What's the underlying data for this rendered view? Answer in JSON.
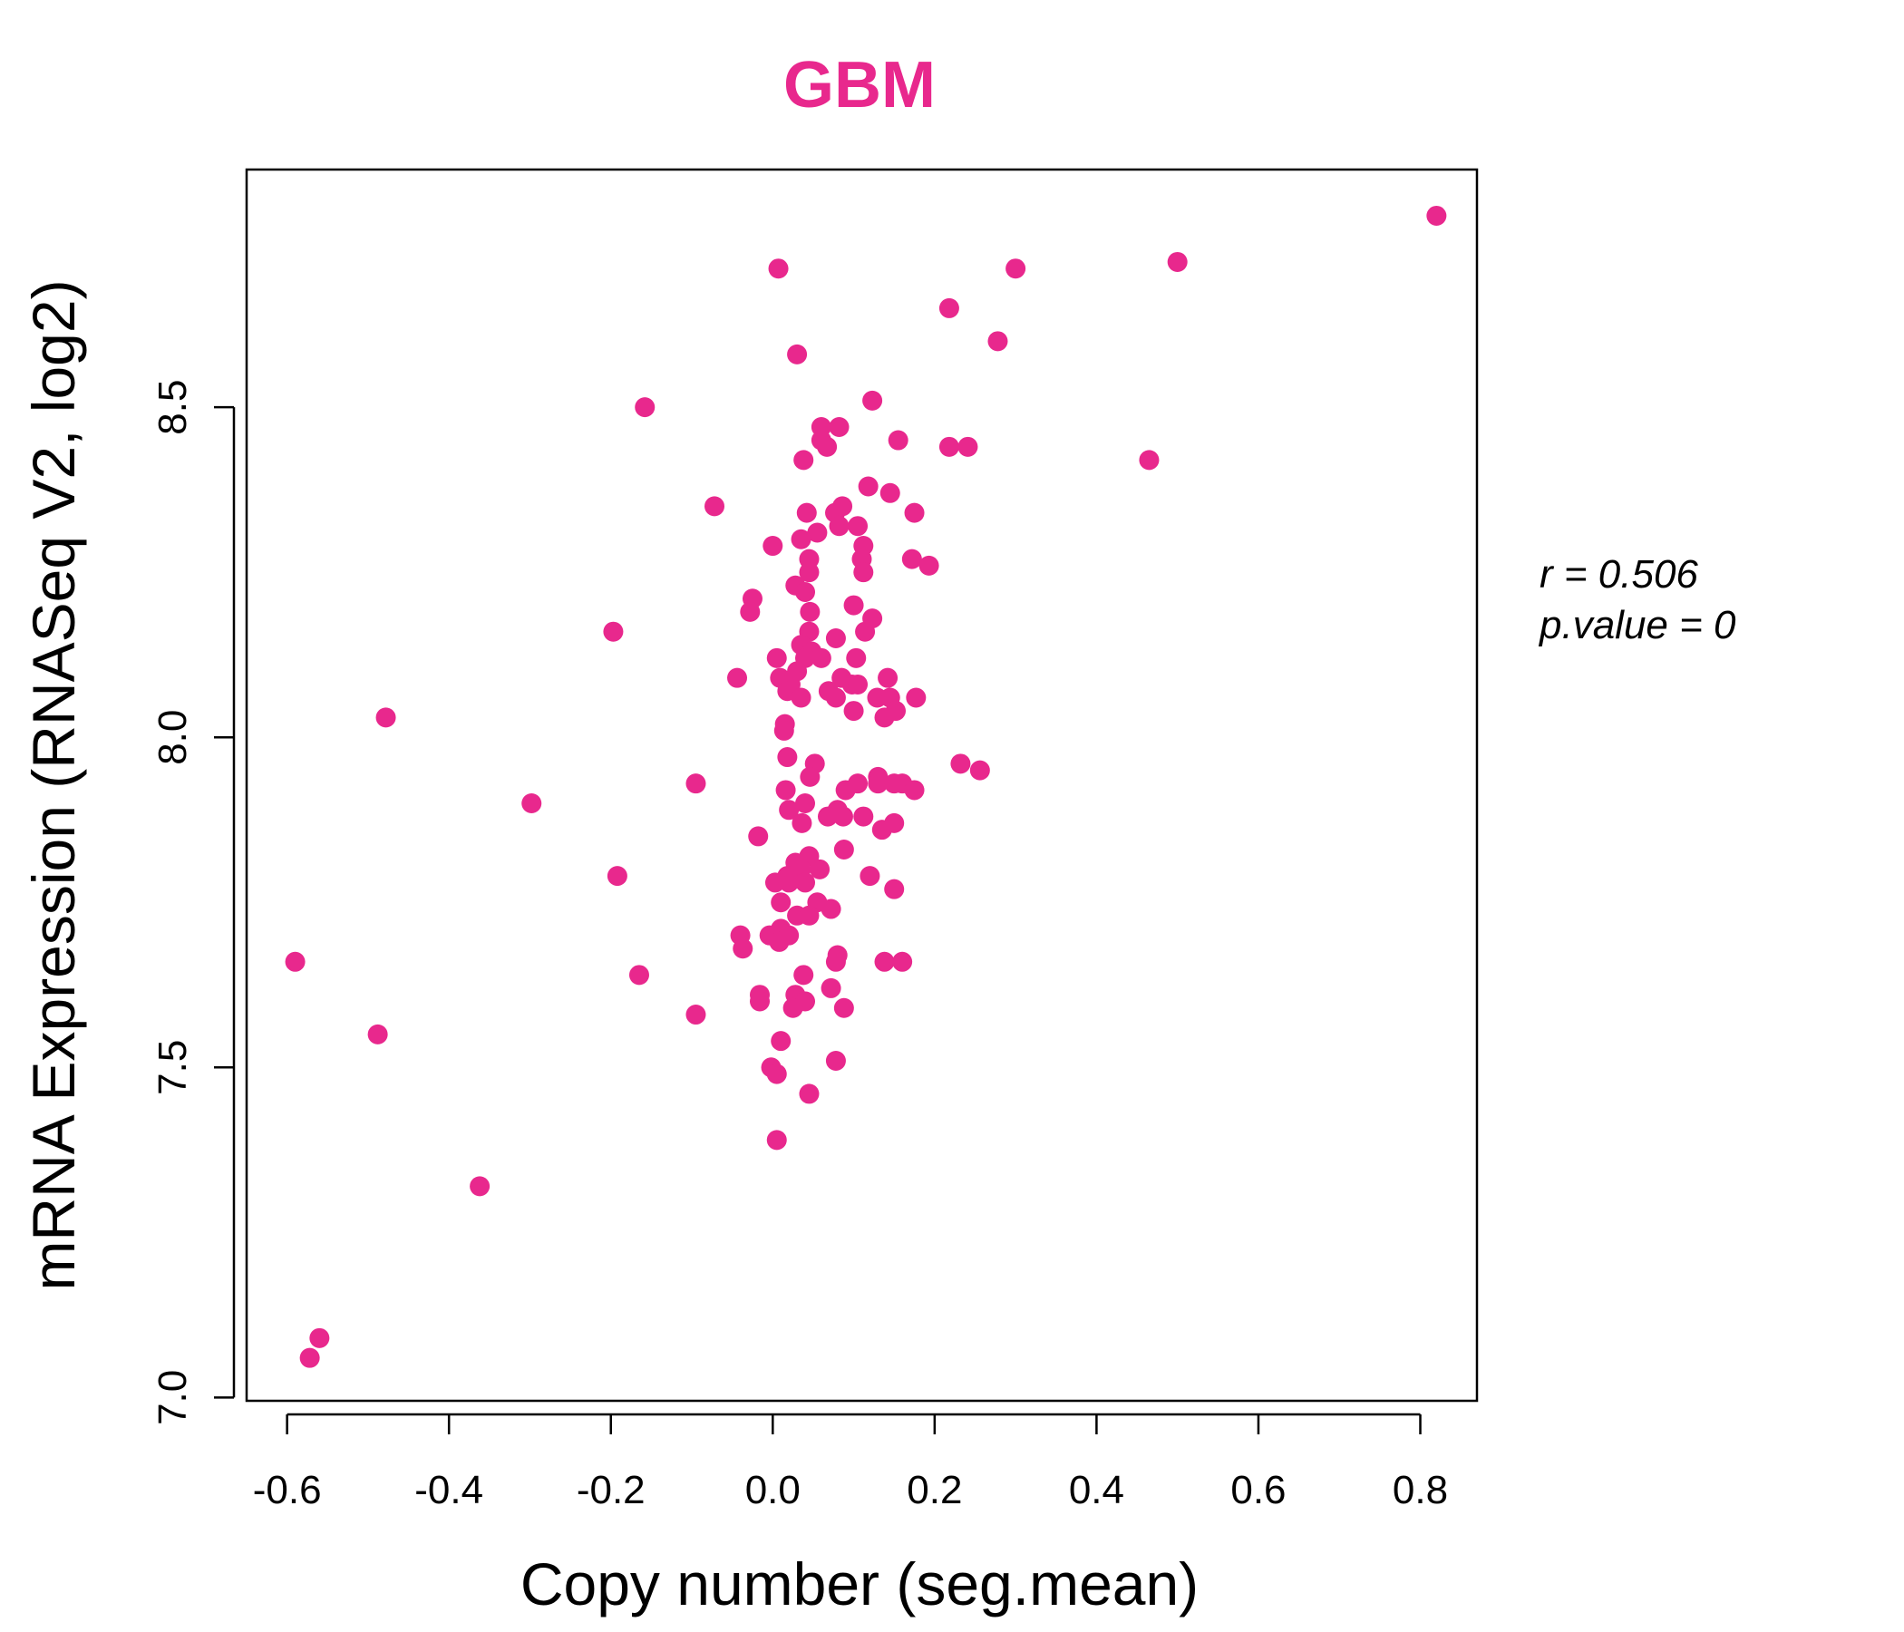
{
  "colors": {
    "point": "#E8288D",
    "title": "#E8288D",
    "axis": "#000000",
    "background": "#ffffff"
  },
  "chart_data": {
    "type": "scatter",
    "title": "GBM",
    "xlabel": "Copy number (seg.mean)",
    "ylabel": "mRNA Expression (RNASeq V2, log2)",
    "xlim": [
      -0.65,
      0.87
    ],
    "ylim": [
      6.995,
      8.86
    ],
    "xticks": [
      -0.6,
      -0.4,
      -0.2,
      0.0,
      0.2,
      0.4,
      0.6,
      0.8
    ],
    "xtick_labels": [
      "-0.6",
      "-0.4",
      "-0.2",
      "0.0",
      "0.2",
      "0.4",
      "0.6",
      "0.8"
    ],
    "yticks": [
      7.0,
      7.5,
      8.0,
      8.5
    ],
    "ytick_labels": [
      "7.0",
      "7.5",
      "8.0",
      "8.5"
    ],
    "grid": false,
    "stats": {
      "r_text": "r = 0.506",
      "p_text": "p.value = 0"
    },
    "points": [
      [
        0.82,
        8.79
      ],
      [
        0.5,
        8.72
      ],
      [
        0.3,
        8.71
      ],
      [
        0.007,
        8.71
      ],
      [
        0.218,
        8.65
      ],
      [
        0.278,
        8.6
      ],
      [
        0.03,
        8.58
      ],
      [
        0.123,
        8.51
      ],
      [
        -0.158,
        8.5
      ],
      [
        0.06,
        8.47
      ],
      [
        0.082,
        8.47
      ],
      [
        0.06,
        8.45
      ],
      [
        0.067,
        8.44
      ],
      [
        0.155,
        8.45
      ],
      [
        0.218,
        8.44
      ],
      [
        0.241,
        8.44
      ],
      [
        0.038,
        8.42
      ],
      [
        0.465,
        8.42
      ],
      [
        0.118,
        8.38
      ],
      [
        0.145,
        8.37
      ],
      [
        -0.072,
        8.35
      ],
      [
        0.042,
        8.34
      ],
      [
        0.077,
        8.34
      ],
      [
        0.086,
        8.35
      ],
      [
        0.175,
        8.34
      ],
      [
        0.055,
        8.31
      ],
      [
        0.082,
        8.32
      ],
      [
        0.105,
        8.32
      ],
      [
        0.035,
        8.3
      ],
      [
        0.0,
        8.29
      ],
      [
        0.112,
        8.29
      ],
      [
        0.045,
        8.27
      ],
      [
        0.11,
        8.27
      ],
      [
        0.172,
        8.27
      ],
      [
        0.193,
        8.26
      ],
      [
        0.045,
        8.25
      ],
      [
        0.112,
        8.25
      ],
      [
        0.028,
        8.23
      ],
      [
        0.04,
        8.22
      ],
      [
        -0.025,
        8.21
      ],
      [
        -0.028,
        8.19
      ],
      [
        0.1,
        8.2
      ],
      [
        0.046,
        8.19
      ],
      [
        0.123,
        8.18
      ],
      [
        -0.197,
        8.16
      ],
      [
        0.045,
        8.16
      ],
      [
        0.114,
        8.16
      ],
      [
        0.078,
        8.15
      ],
      [
        0.035,
        8.14
      ],
      [
        0.048,
        8.13
      ],
      [
        0.005,
        8.12
      ],
      [
        0.04,
        8.12
      ],
      [
        0.06,
        8.12
      ],
      [
        0.103,
        8.12
      ],
      [
        0.03,
        8.1
      ],
      [
        -0.044,
        8.09
      ],
      [
        0.009,
        8.09
      ],
      [
        0.085,
        8.09
      ],
      [
        0.142,
        8.09
      ],
      [
        0.022,
        8.08
      ],
      [
        0.098,
        8.08
      ],
      [
        0.105,
        8.08
      ],
      [
        0.018,
        8.07
      ],
      [
        0.069,
        8.07
      ],
      [
        0.035,
        8.06
      ],
      [
        0.078,
        8.06
      ],
      [
        0.129,
        8.06
      ],
      [
        0.145,
        8.06
      ],
      [
        0.177,
        8.06
      ],
      [
        0.1,
        8.04
      ],
      [
        0.152,
        8.04
      ],
      [
        -0.478,
        8.03
      ],
      [
        0.138,
        8.03
      ],
      [
        0.015,
        8.02
      ],
      [
        0.014,
        8.01
      ],
      [
        0.232,
        7.96
      ],
      [
        0.018,
        7.97
      ],
      [
        0.052,
        7.96
      ],
      [
        0.256,
        7.95
      ],
      [
        0.046,
        7.94
      ],
      [
        0.13,
        7.94
      ],
      [
        -0.095,
        7.93
      ],
      [
        0.13,
        7.93
      ],
      [
        0.15,
        7.93
      ],
      [
        0.16,
        7.93
      ],
      [
        0.105,
        7.93
      ],
      [
        0.09,
        7.92
      ],
      [
        0.175,
        7.92
      ],
      [
        0.016,
        7.92
      ],
      [
        -0.298,
        7.9
      ],
      [
        0.04,
        7.9
      ],
      [
        0.02,
        7.89
      ],
      [
        0.08,
        7.89
      ],
      [
        0.068,
        7.88
      ],
      [
        0.087,
        7.88
      ],
      [
        0.112,
        7.88
      ],
      [
        0.036,
        7.87
      ],
      [
        0.15,
        7.87
      ],
      [
        0.135,
        7.86
      ],
      [
        -0.018,
        7.85
      ],
      [
        0.088,
        7.83
      ],
      [
        0.045,
        7.82
      ],
      [
        0.028,
        7.81
      ],
      [
        0.035,
        7.8
      ],
      [
        0.058,
        7.8
      ],
      [
        -0.192,
        7.79
      ],
      [
        0.018,
        7.79
      ],
      [
        0.12,
        7.79
      ],
      [
        0.003,
        7.78
      ],
      [
        0.04,
        7.78
      ],
      [
        0.02,
        7.78
      ],
      [
        0.15,
        7.77
      ],
      [
        0.01,
        7.75
      ],
      [
        0.055,
        7.75
      ],
      [
        0.072,
        7.74
      ],
      [
        0.03,
        7.73
      ],
      [
        0.045,
        7.73
      ],
      [
        0.01,
        7.71
      ],
      [
        -0.04,
        7.7
      ],
      [
        -0.004,
        7.7
      ],
      [
        0.02,
        7.7
      ],
      [
        0.008,
        7.69
      ],
      [
        -0.037,
        7.68
      ],
      [
        0.08,
        7.67
      ],
      [
        0.138,
        7.66
      ],
      [
        0.078,
        7.66
      ],
      [
        0.16,
        7.66
      ],
      [
        -0.59,
        7.66
      ],
      [
        -0.165,
        7.64
      ],
      [
        0.038,
        7.64
      ],
      [
        0.072,
        7.62
      ],
      [
        0.028,
        7.61
      ],
      [
        -0.016,
        7.61
      ],
      [
        -0.016,
        7.6
      ],
      [
        0.04,
        7.6
      ],
      [
        0.025,
        7.59
      ],
      [
        0.088,
        7.59
      ],
      [
        -0.095,
        7.58
      ],
      [
        -0.488,
        7.55
      ],
      [
        0.01,
        7.54
      ],
      [
        0.078,
        7.51
      ],
      [
        -0.002,
        7.5
      ],
      [
        0.005,
        7.49
      ],
      [
        0.045,
        7.46
      ],
      [
        0.005,
        7.39
      ],
      [
        -0.362,
        7.32
      ],
      [
        -0.56,
        7.09
      ],
      [
        -0.572,
        7.06
      ]
    ]
  }
}
